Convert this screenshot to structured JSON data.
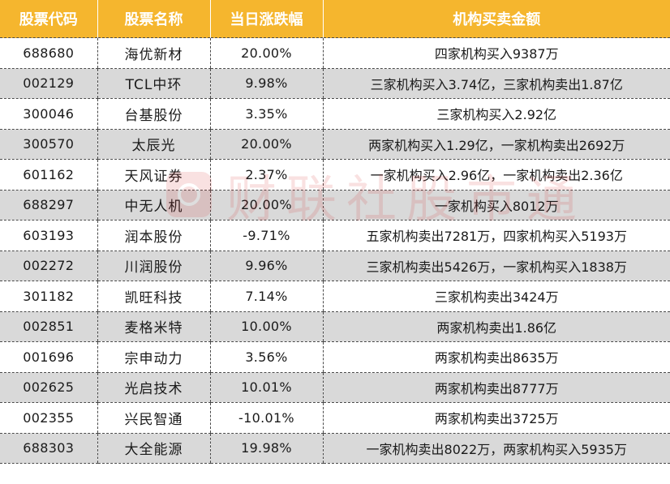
{
  "table": {
    "headers": [
      "股票代码",
      "股票名称",
      "当日涨跌幅",
      "机构买卖金额"
    ],
    "rows": [
      {
        "code": "688680",
        "name": "海优新材",
        "change": "20.00%",
        "amount": "四家机构买入9387万"
      },
      {
        "code": "002129",
        "name": "TCL中环",
        "change": "9.98%",
        "amount": "三家机构买入3.74亿，三家机构卖出1.87亿"
      },
      {
        "code": "300046",
        "name": "台基股份",
        "change": "3.35%",
        "amount": "三家机构买入2.92亿"
      },
      {
        "code": "300570",
        "name": "太辰光",
        "change": "20.00%",
        "amount": "两家机构买入1.29亿，一家机构卖出2692万"
      },
      {
        "code": "601162",
        "name": "天风证券",
        "change": "2.37%",
        "amount": "一家机构买入2.96亿，一家机构卖出2.36亿"
      },
      {
        "code": "688297",
        "name": "中无人机",
        "change": "20.00%",
        "amount": "一家机构买入8012万"
      },
      {
        "code": "603193",
        "name": "润本股份",
        "change": "-9.71%",
        "amount": "五家机构卖出7281万，四家机构买入5193万"
      },
      {
        "code": "002272",
        "name": "川润股份",
        "change": "9.96%",
        "amount": "三家机构卖出5426万，一家机构买入1838万"
      },
      {
        "code": "301182",
        "name": "凯旺科技",
        "change": "7.14%",
        "amount": "三家机构卖出3424万"
      },
      {
        "code": "002851",
        "name": "麦格米特",
        "change": "10.00%",
        "amount": "两家机构卖出1.86亿"
      },
      {
        "code": "001696",
        "name": "宗申动力",
        "change": "3.56%",
        "amount": "两家机构卖出8635万"
      },
      {
        "code": "002625",
        "name": "光启技术",
        "change": "10.01%",
        "amount": "两家机构卖出8777万"
      },
      {
        "code": "002355",
        "name": "兴民智通",
        "change": "-10.01%",
        "amount": "两家机构卖出3725万"
      },
      {
        "code": "688303",
        "name": "大全能源",
        "change": "19.98%",
        "amount": "一家机构卖出8022万，两家机构买入5935万"
      }
    ]
  },
  "watermark": {
    "text": "财联社股市通",
    "color": "#d42222"
  },
  "colors": {
    "header_bg": "#f5b62e",
    "header_text": "#ffffff",
    "stripe_bg": "#d9d9d9"
  }
}
